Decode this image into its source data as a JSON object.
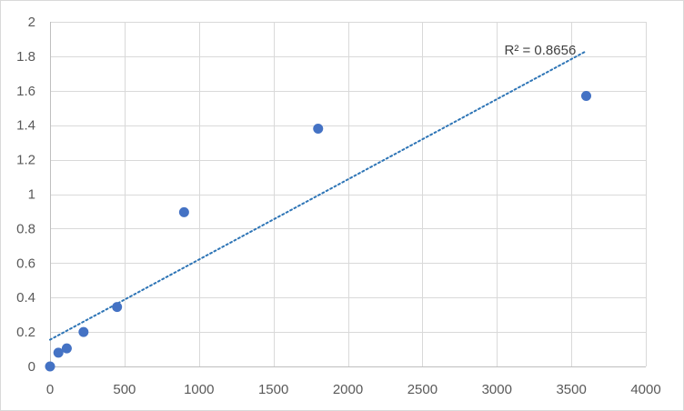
{
  "chart_data": {
    "type": "scatter",
    "x": [
      0,
      56.25,
      112.5,
      225,
      450,
      900,
      1800,
      3600
    ],
    "y": [
      0.0,
      0.08,
      0.105,
      0.2,
      0.345,
      0.895,
      1.38,
      1.57
    ],
    "xlim": [
      0,
      4000
    ],
    "ylim": [
      0,
      2
    ],
    "x_ticks": [
      "0",
      "500",
      "1000",
      "1500",
      "2000",
      "2500",
      "3000",
      "3500",
      "4000"
    ],
    "y_ticks": [
      "0",
      "0.2",
      "0.4",
      "0.6",
      "0.8",
      "1",
      "1.2",
      "1.4",
      "1.6",
      "1.8",
      "2"
    ],
    "grid": true,
    "trendline": {
      "type": "linear",
      "x": [
        0,
        3600
      ],
      "y": [
        0.155,
        1.83
      ],
      "r2_label": "R² = 0.8656"
    },
    "colors": {
      "marker": "#4472c4",
      "trendline": "#2e75b6",
      "grid": "#d9d9d9"
    }
  }
}
